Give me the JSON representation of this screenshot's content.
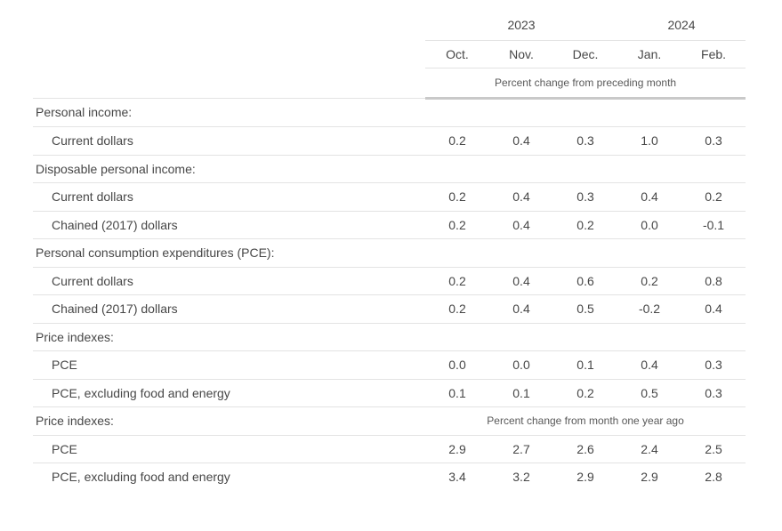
{
  "chart_data": {
    "type": "table",
    "column_groups": [
      {
        "label": "2023",
        "span": 3
      },
      {
        "label": "2024",
        "span": 2
      }
    ],
    "columns": [
      "Oct.",
      "Nov.",
      "Dec.",
      "Jan.",
      "Feb."
    ],
    "spanner_note": "Percent change from preceding month",
    "rows": [
      {
        "type": "section",
        "label": "Personal income:"
      },
      {
        "type": "data",
        "label": "Current dollars",
        "values": [
          "0.2",
          "0.4",
          "0.3",
          "1.0",
          "0.3"
        ]
      },
      {
        "type": "section",
        "label": "Disposable personal income:"
      },
      {
        "type": "data",
        "label": "Current dollars",
        "values": [
          "0.2",
          "0.4",
          "0.3",
          "0.4",
          "0.2"
        ]
      },
      {
        "type": "data",
        "label": "Chained (2017) dollars",
        "values": [
          "0.2",
          "0.4",
          "0.2",
          "0.0",
          "-0.1"
        ]
      },
      {
        "type": "section",
        "label": "Personal consumption expenditures (PCE):"
      },
      {
        "type": "data",
        "label": "Current dollars",
        "values": [
          "0.2",
          "0.4",
          "0.6",
          "0.2",
          "0.8"
        ]
      },
      {
        "type": "data",
        "label": "Chained (2017) dollars",
        "values": [
          "0.2",
          "0.4",
          "0.5",
          "-0.2",
          "0.4"
        ]
      },
      {
        "type": "section",
        "label": "Price indexes:"
      },
      {
        "type": "data",
        "label": "PCE",
        "values": [
          "0.0",
          "0.0",
          "0.1",
          "0.4",
          "0.3"
        ]
      },
      {
        "type": "data",
        "label": "PCE, excluding food and energy",
        "values": [
          "0.1",
          "0.1",
          "0.2",
          "0.5",
          "0.3"
        ]
      },
      {
        "type": "section",
        "label": "Price indexes:",
        "note": "Percent change from month one year ago"
      },
      {
        "type": "data",
        "label": "PCE",
        "values": [
          "2.9",
          "2.7",
          "2.6",
          "2.4",
          "2.5"
        ]
      },
      {
        "type": "data",
        "label": "PCE, excluding food and energy",
        "values": [
          "3.4",
          "3.2",
          "2.9",
          "2.9",
          "2.8"
        ]
      }
    ],
    "colors": {
      "text": "#474747",
      "note_text": "#595959",
      "rule_light": "#e3e3e3",
      "rule_heavy": "#c9c9c9",
      "background": "#ffffff"
    }
  }
}
